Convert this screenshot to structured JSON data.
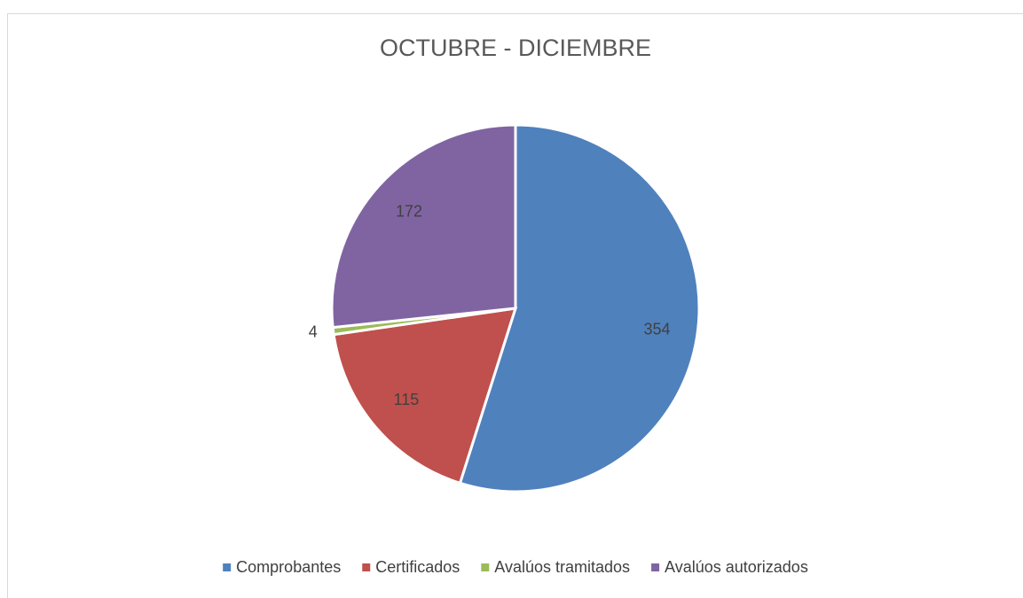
{
  "chart_data": {
    "type": "pie",
    "title": "OCTUBRE - DICIEMBRE",
    "categories": [
      "Comprobantes",
      "Certificados",
      "Avalúos tramitados",
      "Avalúos autorizados"
    ],
    "values": [
      354,
      115,
      4,
      172
    ],
    "colors": [
      "#4f81bd",
      "#c0504d",
      "#9bbb59",
      "#8064a2"
    ],
    "legend": "bottom"
  }
}
